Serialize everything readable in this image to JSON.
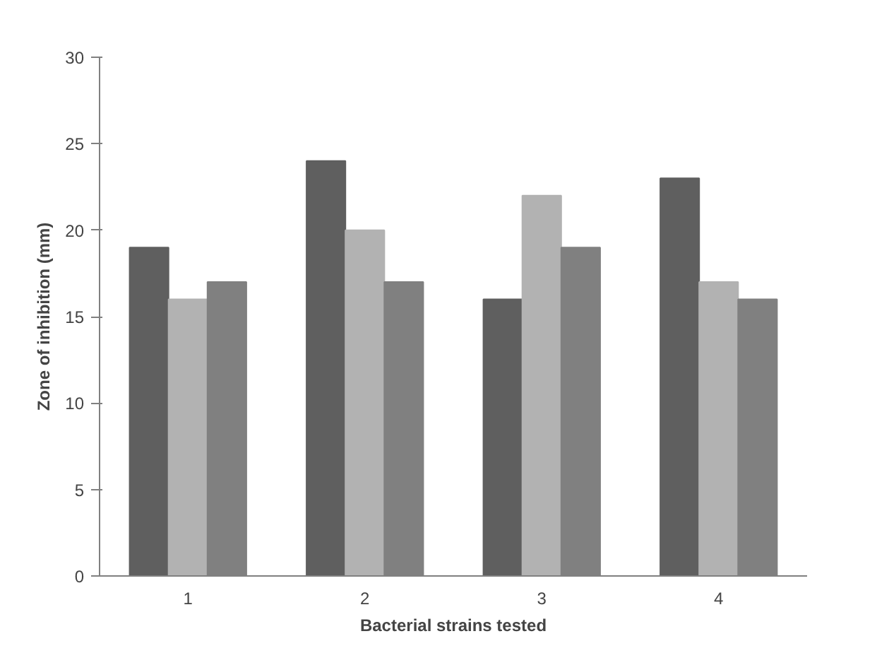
{
  "chart_data": {
    "type": "bar",
    "xlabel": "Bacterial strains tested",
    "ylabel": "Zone of inhibition (mm)",
    "categories": [
      "1",
      "2",
      "3",
      "4"
    ],
    "series": [
      {
        "color": "#5f5f5f",
        "values": [
          19,
          24,
          16,
          23
        ]
      },
      {
        "color": "#b2b2b2",
        "values": [
          16,
          20,
          22,
          17
        ]
      },
      {
        "color": "#808080",
        "values": [
          17,
          17,
          19,
          16
        ]
      }
    ],
    "ylim": [
      0,
      30
    ],
    "yticks": [
      0,
      5,
      10,
      15,
      20,
      25,
      30
    ]
  }
}
